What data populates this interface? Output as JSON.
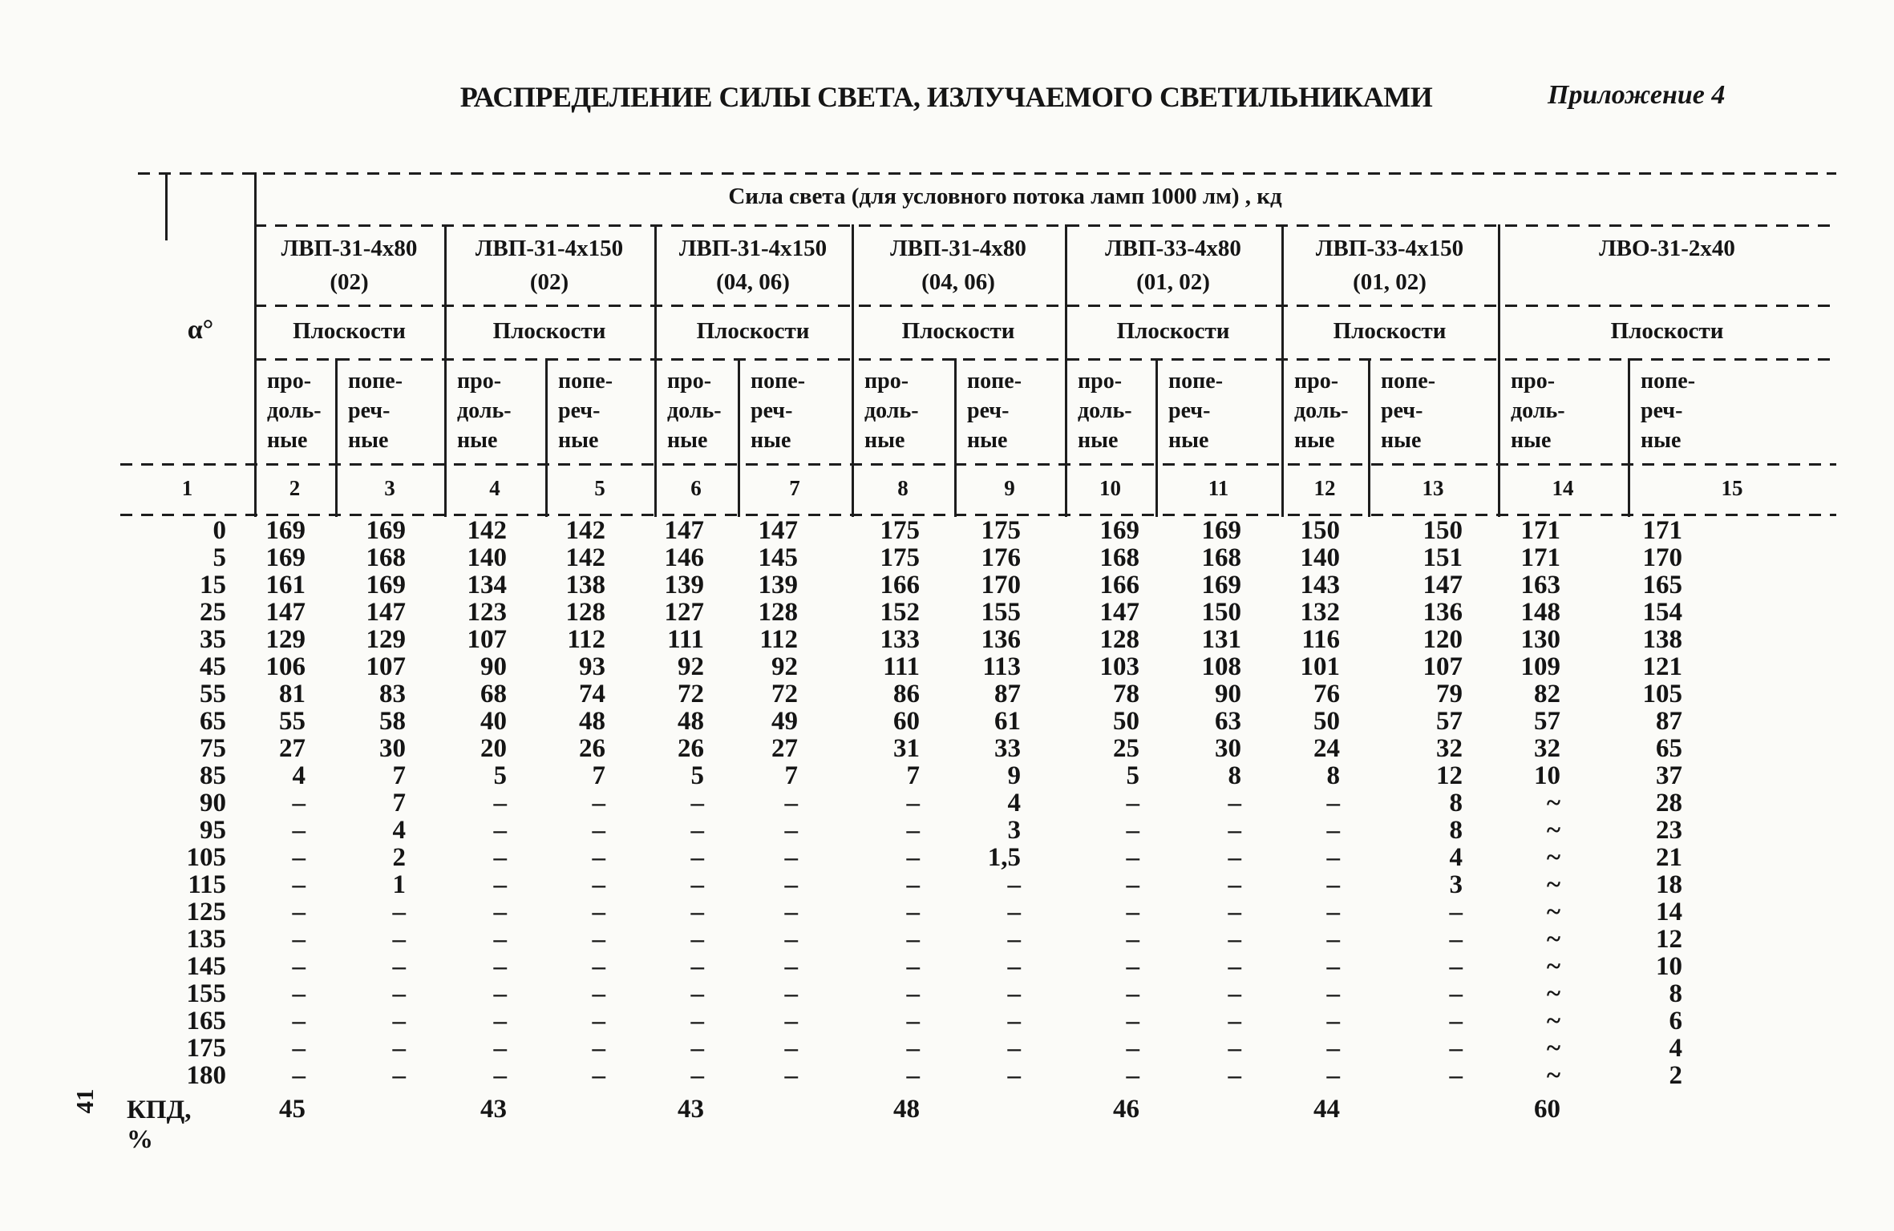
{
  "page": {
    "title": "РАСПРЕДЕЛЕНИЕ СИЛЫ СВЕТА, ИЗЛУЧАЕМОГО СВЕТИЛЬНИКАМИ",
    "appendix": "Приложение 4",
    "page_number": "41"
  },
  "table": {
    "span_header": "Сила света (для условного потока ламп 1000 лм) , кд",
    "alpha_label": "α°",
    "planes_label": "Плоскости",
    "sub_headers": [
      "про-\nдоль-\nные",
      "попе-\nреч-\nные"
    ],
    "column_numbers": [
      "1",
      "2",
      "3",
      "4",
      "5",
      "6",
      "7",
      "8",
      "9",
      "10",
      "11",
      "12",
      "13",
      "14",
      "15"
    ],
    "groups": [
      {
        "name": "ЛВП-31-4х80",
        "mod": "(02)"
      },
      {
        "name": "ЛВП-31-4х150",
        "mod": "(02)"
      },
      {
        "name": "ЛВП-31-4х150",
        "mod": "(04, 06)"
      },
      {
        "name": "ЛВП-31-4х80",
        "mod": "(04, 06)"
      },
      {
        "name": "ЛВП-33-4х80",
        "mod": "(01, 02)"
      },
      {
        "name": "ЛВП-33-4х150",
        "mod": "(01, 02)"
      },
      {
        "name": "ЛВО-31-2х40",
        "mod": ""
      }
    ],
    "rows": [
      {
        "angle": "0",
        "values": [
          "169",
          "169",
          "142",
          "142",
          "147",
          "147",
          "175",
          "175",
          "169",
          "169",
          "150",
          "150",
          "171",
          "171"
        ]
      },
      {
        "angle": "5",
        "values": [
          "169",
          "168",
          "140",
          "142",
          "146",
          "145",
          "175",
          "176",
          "168",
          "168",
          "140",
          "151",
          "171",
          "170"
        ]
      },
      {
        "angle": "15",
        "values": [
          "161",
          "169",
          "134",
          "138",
          "139",
          "139",
          "166",
          "170",
          "166",
          "169",
          "143",
          "147",
          "163",
          "165"
        ]
      },
      {
        "angle": "25",
        "values": [
          "147",
          "147",
          "123",
          "128",
          "127",
          "128",
          "152",
          "155",
          "147",
          "150",
          "132",
          "136",
          "148",
          "154"
        ]
      },
      {
        "angle": "35",
        "values": [
          "129",
          "129",
          "107",
          "112",
          "111",
          "112",
          "133",
          "136",
          "128",
          "131",
          "116",
          "120",
          "130",
          "138"
        ]
      },
      {
        "angle": "45",
        "values": [
          "106",
          "107",
          "90",
          "93",
          "92",
          "92",
          "111",
          "113",
          "103",
          "108",
          "101",
          "107",
          "109",
          "121"
        ]
      },
      {
        "angle": "55",
        "values": [
          "81",
          "83",
          "68",
          "74",
          "72",
          "72",
          "86",
          "87",
          "78",
          "90",
          "76",
          "79",
          "82",
          "105"
        ]
      },
      {
        "angle": "65",
        "values": [
          "55",
          "58",
          "40",
          "48",
          "48",
          "49",
          "60",
          "61",
          "50",
          "63",
          "50",
          "57",
          "57",
          "87"
        ]
      },
      {
        "angle": "75",
        "values": [
          "27",
          "30",
          "20",
          "26",
          "26",
          "27",
          "31",
          "33",
          "25",
          "30",
          "24",
          "32",
          "32",
          "65"
        ]
      },
      {
        "angle": "85",
        "values": [
          "4",
          "7",
          "5",
          "7",
          "5",
          "7",
          "7",
          "9",
          "5",
          "8",
          "8",
          "12",
          "10",
          "37"
        ]
      },
      {
        "angle": "90",
        "values": [
          "–",
          "7",
          "–",
          "–",
          "–",
          "–",
          "–",
          "4",
          "–",
          "–",
          "–",
          "8",
          "~",
          "28"
        ]
      },
      {
        "angle": "95",
        "values": [
          "–",
          "4",
          "–",
          "–",
          "–",
          "–",
          "–",
          "3",
          "–",
          "–",
          "–",
          "8",
          "~",
          "23"
        ]
      },
      {
        "angle": "105",
        "values": [
          "–",
          "2",
          "–",
          "–",
          "–",
          "–",
          "–",
          "1,5",
          "–",
          "–",
          "–",
          "4",
          "~",
          "21"
        ]
      },
      {
        "angle": "115",
        "values": [
          "–",
          "1",
          "–",
          "–",
          "–",
          "–",
          "–",
          "–",
          "–",
          "–",
          "–",
          "3",
          "~",
          "18"
        ]
      },
      {
        "angle": "125",
        "values": [
          "–",
          "–",
          "–",
          "–",
          "–",
          "–",
          "–",
          "–",
          "–",
          "–",
          "–",
          "–",
          "~",
          "14"
        ]
      },
      {
        "angle": "135",
        "values": [
          "–",
          "–",
          "–",
          "–",
          "–",
          "–",
          "–",
          "–",
          "–",
          "–",
          "–",
          "–",
          "~",
          "12"
        ]
      },
      {
        "angle": "145",
        "values": [
          "–",
          "–",
          "–",
          "–",
          "–",
          "–",
          "–",
          "–",
          "–",
          "–",
          "–",
          "–",
          "~",
          "10"
        ]
      },
      {
        "angle": "155",
        "values": [
          "–",
          "–",
          "–",
          "–",
          "–",
          "–",
          "–",
          "–",
          "–",
          "–",
          "–",
          "–",
          "~",
          "8"
        ]
      },
      {
        "angle": "165",
        "values": [
          "–",
          "–",
          "–",
          "–",
          "–",
          "–",
          "–",
          "–",
          "–",
          "–",
          "–",
          "–",
          "~",
          "6"
        ]
      },
      {
        "angle": "175",
        "values": [
          "–",
          "–",
          "–",
          "–",
          "–",
          "–",
          "–",
          "–",
          "–",
          "–",
          "–",
          "–",
          "~",
          "4"
        ]
      },
      {
        "angle": "180",
        "values": [
          "–",
          "–",
          "–",
          "–",
          "–",
          "–",
          "–",
          "–",
          "–",
          "–",
          "–",
          "–",
          "~",
          "2"
        ]
      }
    ],
    "kpd": {
      "label": "КПД,\n%",
      "values": [
        "45",
        "43",
        "43",
        "48",
        "46",
        "44",
        "60"
      ]
    }
  }
}
